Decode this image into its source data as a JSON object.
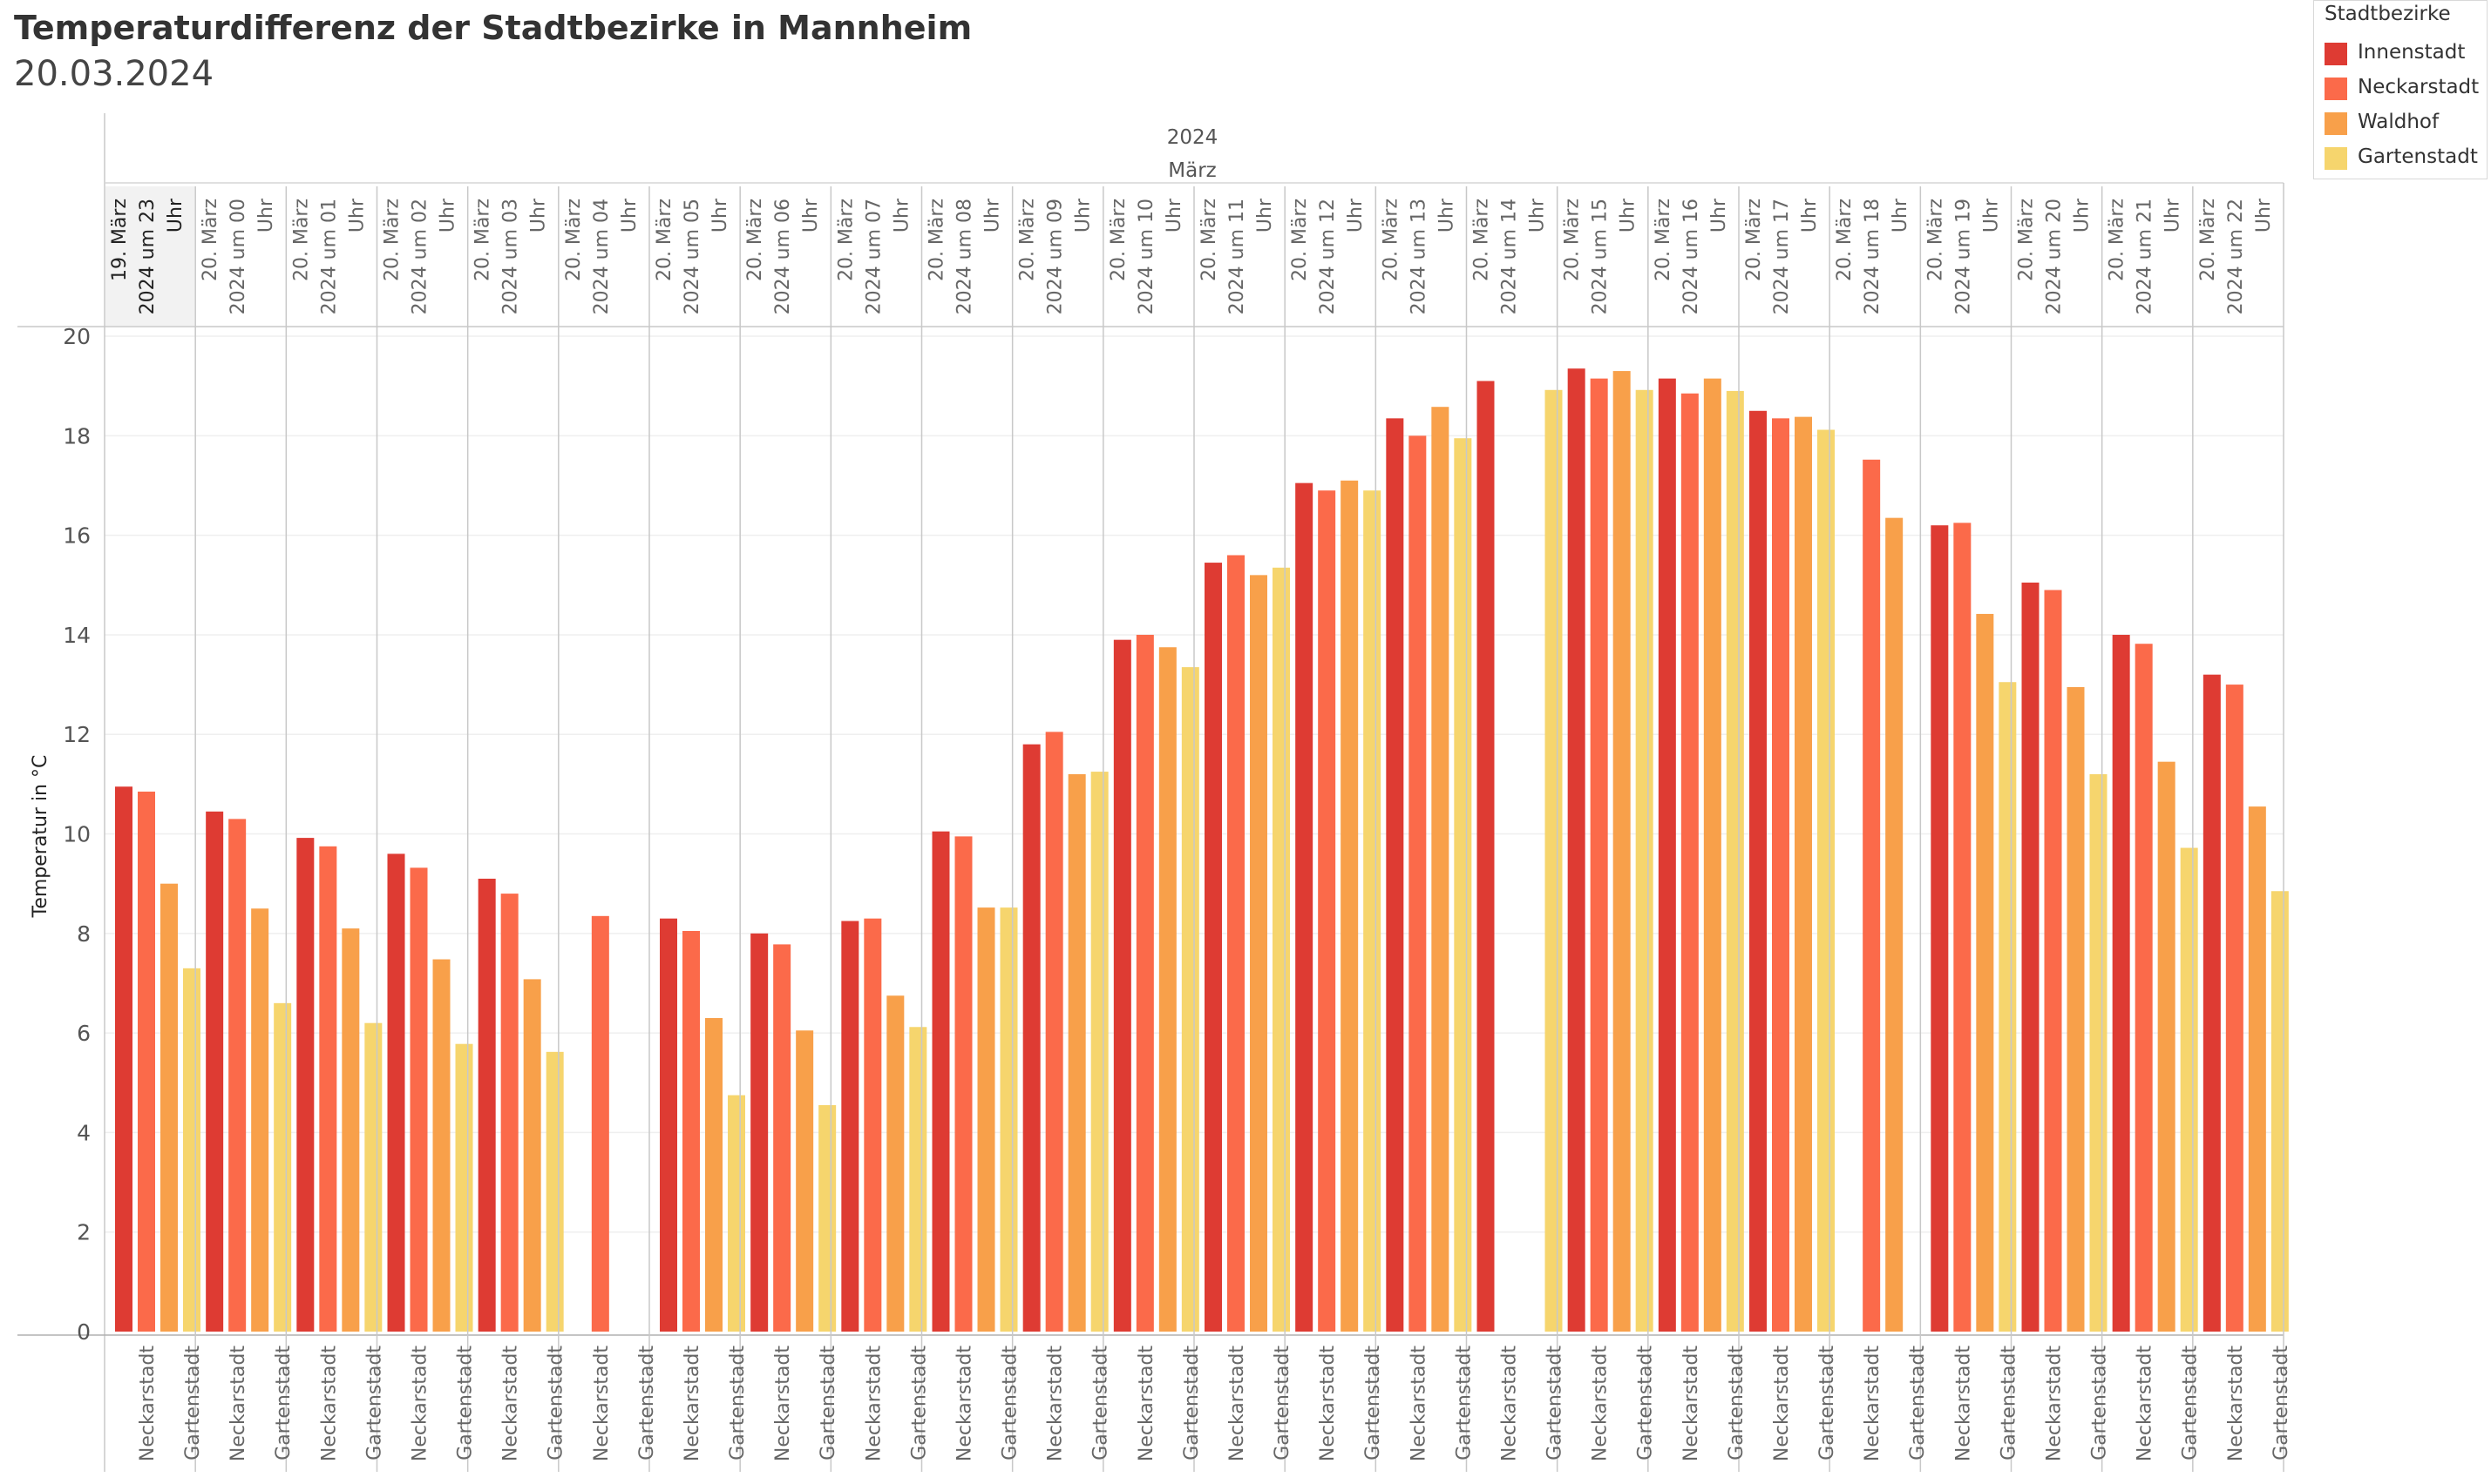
{
  "title": "Temperaturdifferenz der Stadtbezirke in Mannheim",
  "subtitle": "20.03.2024",
  "header": {
    "year": "2024",
    "month": "März"
  },
  "legend": {
    "title": "Stadtbezirke",
    "items": [
      {
        "label": "Innenstadt",
        "color": "#de3b33"
      },
      {
        "label": "Neckarstadt",
        "color": "#fb6a4a"
      },
      {
        "label": "Waldhof",
        "color": "#f8a04a"
      },
      {
        "label": "Gartenstadt",
        "color": "#f6d56d"
      }
    ]
  },
  "chart_data": {
    "type": "bar",
    "title": "Temperaturdifferenz der Stadtbezirke in Mannheim",
    "subtitle": "20.03.2024",
    "ylabel": "Temperatur in °C",
    "ylim": [
      0,
      20
    ],
    "yticks": [
      0,
      2,
      4,
      6,
      8,
      10,
      12,
      14,
      16,
      18,
      20
    ],
    "grid": true,
    "legend_position": "top-right",
    "x_tick_labels": [
      "Neckarstadt",
      "Gartenstadt"
    ],
    "categories": [
      [
        "19. März",
        "2024 um 23",
        "Uhr"
      ],
      [
        "20. März",
        "2024 um 00",
        "Uhr"
      ],
      [
        "20. März",
        "2024 um 01",
        "Uhr"
      ],
      [
        "20. März",
        "2024 um 02",
        "Uhr"
      ],
      [
        "20. März",
        "2024 um 03",
        "Uhr"
      ],
      [
        "20. März",
        "2024 um 04",
        "Uhr"
      ],
      [
        "20. März",
        "2024 um 05",
        "Uhr"
      ],
      [
        "20. März",
        "2024 um 06",
        "Uhr"
      ],
      [
        "20. März",
        "2024 um 07",
        "Uhr"
      ],
      [
        "20. März",
        "2024 um 08",
        "Uhr"
      ],
      [
        "20. März",
        "2024 um 09",
        "Uhr"
      ],
      [
        "20. März",
        "2024 um 10",
        "Uhr"
      ],
      [
        "20. März",
        "2024 um 11",
        "Uhr"
      ],
      [
        "20. März",
        "2024 um 12",
        "Uhr"
      ],
      [
        "20. März",
        "2024 um 13",
        "Uhr"
      ],
      [
        "20. März",
        "2024 um 14",
        "Uhr"
      ],
      [
        "20. März",
        "2024 um 15",
        "Uhr"
      ],
      [
        "20. März",
        "2024 um 16",
        "Uhr"
      ],
      [
        "20. März",
        "2024 um 17",
        "Uhr"
      ],
      [
        "20. März",
        "2024 um 18",
        "Uhr"
      ],
      [
        "20. März",
        "2024 um 19",
        "Uhr"
      ],
      [
        "20. März",
        "2024 um 20",
        "Uhr"
      ],
      [
        "20. März",
        "2024 um 21",
        "Uhr"
      ],
      [
        "20. März",
        "2024 um 22",
        "Uhr"
      ]
    ],
    "series": [
      {
        "name": "Innenstadt",
        "color": "#de3b33",
        "values": [
          10.95,
          10.45,
          9.92,
          9.6,
          9.1,
          null,
          8.3,
          8.0,
          8.25,
          10.05,
          11.8,
          13.9,
          15.45,
          17.05,
          18.35,
          19.1,
          19.35,
          19.15,
          18.5,
          null,
          16.2,
          15.05,
          14.0,
          13.2
        ]
      },
      {
        "name": "Neckarstadt",
        "color": "#fb6a4a",
        "values": [
          10.85,
          10.3,
          9.75,
          9.32,
          8.8,
          8.35,
          8.05,
          7.78,
          8.3,
          9.95,
          12.05,
          14.0,
          15.6,
          16.9,
          18.0,
          null,
          19.15,
          18.85,
          18.35,
          17.52,
          16.25,
          14.9,
          13.82,
          13.0
        ]
      },
      {
        "name": "Waldhof",
        "color": "#f8a04a",
        "values": [
          9.0,
          8.5,
          8.1,
          7.48,
          7.08,
          null,
          6.3,
          6.05,
          6.75,
          8.52,
          11.2,
          13.75,
          15.2,
          17.1,
          18.58,
          null,
          19.3,
          19.15,
          18.38,
          16.35,
          14.42,
          12.95,
          11.45,
          10.55
        ]
      },
      {
        "name": "Gartenstadt",
        "color": "#f6d56d",
        "values": [
          7.3,
          6.6,
          6.2,
          5.78,
          5.62,
          null,
          4.75,
          4.55,
          6.12,
          8.52,
          11.25,
          13.35,
          15.35,
          16.9,
          17.95,
          18.92,
          18.92,
          18.9,
          18.12,
          null,
          13.05,
          11.2,
          9.72,
          8.85
        ]
      }
    ]
  }
}
